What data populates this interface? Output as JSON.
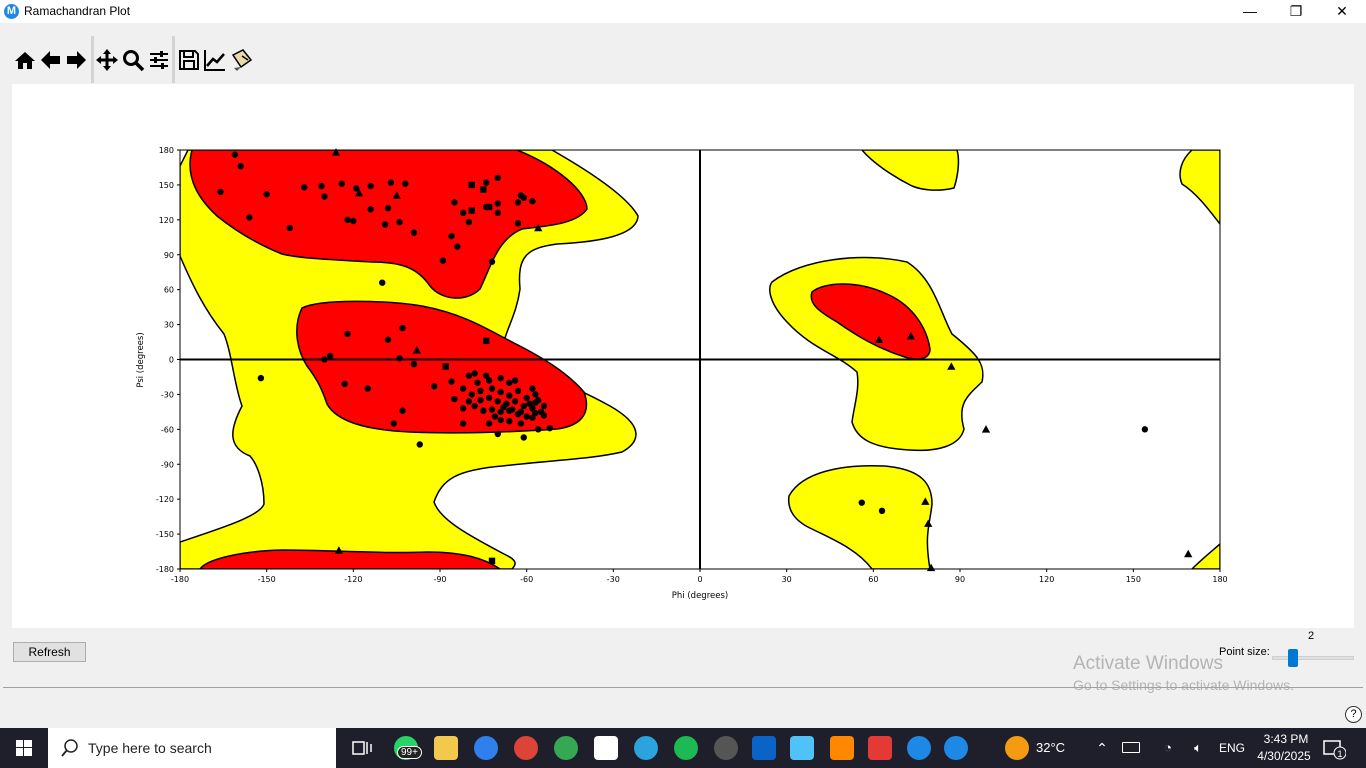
{
  "window": {
    "title": "Ramachandran Plot",
    "app_icon_letter": "M",
    "controls": {
      "minimize": "—",
      "maximize": "❐",
      "close": "✕"
    }
  },
  "toolbar": {
    "buttons": [
      "home-icon",
      "back-arrow-icon",
      "forward-arrow-icon",
      "pan-icon",
      "zoom-icon",
      "configure-subplots-icon",
      "save-icon",
      "edit-axis-icon",
      "customize-icon"
    ]
  },
  "chart_data": {
    "type": "scatter",
    "xlabel": "Phi (degrees)",
    "ylabel": "Psi (degrees)",
    "xlim": [
      -180,
      180
    ],
    "ylim": [
      -180,
      180
    ],
    "xticks": [
      "-180",
      "-150",
      "-120",
      "-90",
      "-60",
      "-30",
      "0",
      "30",
      "60",
      "90",
      "120",
      "150",
      "180"
    ],
    "yticks": [
      "180",
      "150",
      "120",
      "90",
      "60",
      "30",
      "0",
      "-30",
      "-60",
      "-90",
      "-120",
      "-150",
      "-180"
    ],
    "grid": false,
    "region_colors": {
      "favored": "#ff0000",
      "allowed": "#ffff00"
    },
    "series": [
      {
        "marker": "circle",
        "points": [
          [
            -161,
            176
          ],
          [
            -159,
            166
          ],
          [
            -166,
            144
          ],
          [
            -150,
            142
          ],
          [
            -156,
            122
          ],
          [
            -142,
            113
          ],
          [
            -137,
            148
          ],
          [
            -131,
            149
          ],
          [
            -130,
            140
          ],
          [
            -124,
            151
          ],
          [
            -119,
            147
          ],
          [
            -114,
            149
          ],
          [
            -107,
            152
          ],
          [
            -102,
            151
          ],
          [
            -114,
            129
          ],
          [
            -108,
            130
          ],
          [
            -104,
            118
          ],
          [
            -109,
            116
          ],
          [
            -99,
            109
          ],
          [
            -122,
            120
          ],
          [
            -120,
            119
          ],
          [
            -85,
            135
          ],
          [
            -82,
            126
          ],
          [
            -80,
            118
          ],
          [
            -74,
            131
          ],
          [
            -70,
            126
          ],
          [
            -70,
            134
          ],
          [
            -70,
            156
          ],
          [
            -74,
            152
          ],
          [
            -63,
            135
          ],
          [
            -63,
            117
          ],
          [
            -58,
            136
          ],
          [
            -61,
            139
          ],
          [
            -62,
            141
          ],
          [
            -86,
            106
          ],
          [
            -84,
            97
          ],
          [
            -89,
            85
          ],
          [
            -72,
            84
          ],
          [
            -110,
            66
          ],
          [
            -122,
            22
          ],
          [
            -103,
            27
          ],
          [
            -108,
            17
          ],
          [
            -128,
            3
          ],
          [
            -130,
            0
          ],
          [
            -104,
            1
          ],
          [
            -99,
            -4
          ],
          [
            -152,
            -16
          ],
          [
            -123,
            -21
          ],
          [
            -115,
            -25
          ],
          [
            -92,
            -23
          ],
          [
            -85,
            -34
          ],
          [
            -103,
            -44
          ],
          [
            -106,
            -55
          ],
          [
            -97,
            -73
          ],
          [
            -82,
            -55
          ],
          [
            -82,
            -42
          ],
          [
            -70,
            -64
          ],
          [
            -61,
            -67
          ],
          [
            -56,
            -60
          ],
          [
            -52,
            -59
          ],
          [
            -86,
            -19
          ],
          [
            -80,
            -14
          ],
          [
            -78,
            -12
          ],
          [
            -74,
            -14
          ],
          [
            -73,
            -18
          ],
          [
            -69,
            -16
          ],
          [
            -77,
            -20
          ],
          [
            -66,
            -20
          ],
          [
            -64,
            -18
          ],
          [
            -58,
            -25
          ],
          [
            -57,
            -30
          ],
          [
            -82,
            -25
          ],
          [
            -79,
            -30
          ],
          [
            -76,
            -27
          ],
          [
            -72,
            -25
          ],
          [
            -69,
            -28
          ],
          [
            -66,
            -31
          ],
          [
            -63,
            -27
          ],
          [
            -60,
            -33
          ],
          [
            -57,
            -37
          ],
          [
            -54,
            -40
          ],
          [
            -76,
            -35
          ],
          [
            -73,
            -33
          ],
          [
            -70,
            -36
          ],
          [
            -67,
            -38
          ],
          [
            -64,
            -36
          ],
          [
            -61,
            -40
          ],
          [
            -58,
            -42
          ],
          [
            -55,
            -45
          ],
          [
            -72,
            -43
          ],
          [
            -69,
            -45
          ],
          [
            -66,
            -44
          ],
          [
            -63,
            -47
          ],
          [
            -60,
            -49
          ],
          [
            -57,
            -46
          ],
          [
            -78,
            -40
          ],
          [
            -75,
            -44
          ],
          [
            -71,
            -49
          ],
          [
            -68,
            -41
          ],
          [
            -65,
            -43
          ],
          [
            -62,
            -45
          ],
          [
            -59,
            -38
          ],
          [
            -56,
            -35
          ],
          [
            -80,
            -36
          ],
          [
            -66,
            -53
          ],
          [
            -62,
            -55
          ],
          [
            -58,
            -50
          ],
          [
            -54,
            -48
          ],
          [
            -73,
            -55
          ],
          [
            -69,
            -52
          ],
          [
            56,
            -123
          ],
          [
            63,
            -130
          ],
          [
            154,
            -60
          ]
        ]
      },
      {
        "marker": "triangle",
        "points": [
          [
            -118,
            143
          ],
          [
            -105,
            141
          ],
          [
            -126,
            178
          ],
          [
            -56,
            113
          ],
          [
            -98,
            8
          ],
          [
            -125,
            -164
          ],
          [
            62,
            17
          ],
          [
            73,
            20
          ],
          [
            87,
            -6
          ],
          [
            99,
            -60
          ],
          [
            78,
            -122
          ],
          [
            79,
            -141
          ],
          [
            80,
            -179
          ],
          [
            169,
            -167
          ]
        ]
      },
      {
        "marker": "square",
        "points": [
          [
            -79,
            150
          ],
          [
            -75,
            146
          ],
          [
            -73,
            131
          ],
          [
            -79,
            128
          ],
          [
            -74,
            16
          ],
          [
            -88,
            -6
          ],
          [
            -72,
            -173
          ]
        ]
      }
    ]
  },
  "controls": {
    "refresh_label": "Refresh",
    "point_size_label": "Point size:",
    "point_size_value": "2",
    "point_size_level": 2
  },
  "watermark": {
    "line1": "Activate Windows",
    "line2": "Go to Settings to activate Windows."
  },
  "taskbar": {
    "search_placeholder": "Type here to search",
    "badge": "99+",
    "temperature": "32°C",
    "language": "ENG",
    "time": "3:43 PM",
    "date": "4/30/2025",
    "notification_count": "1"
  }
}
